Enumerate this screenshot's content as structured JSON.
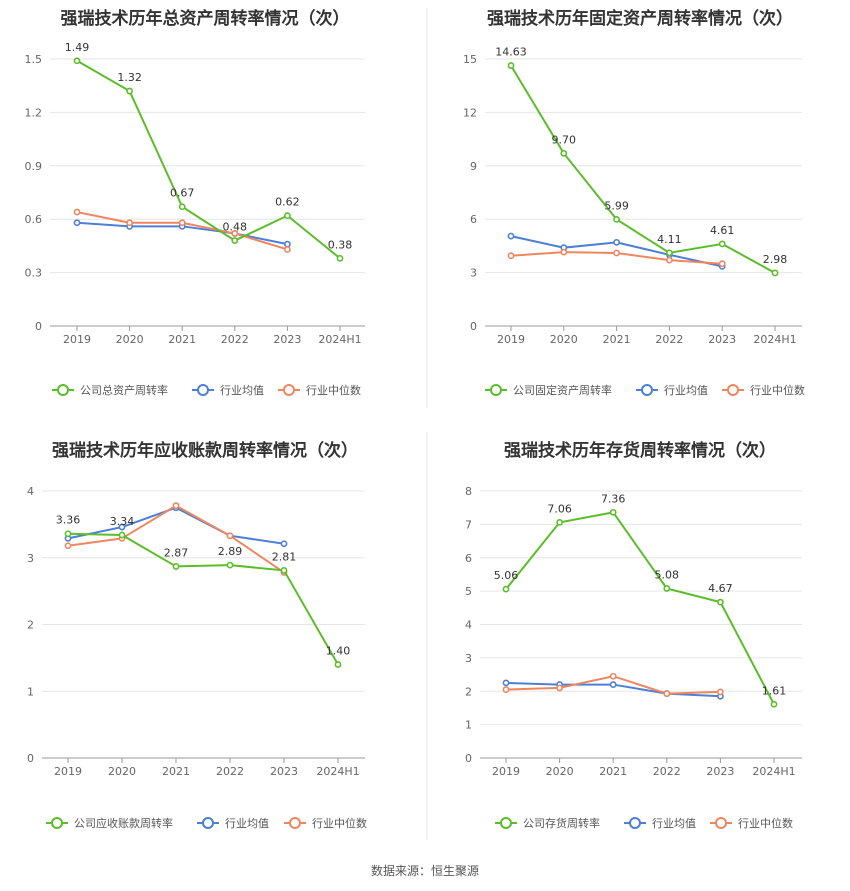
{
  "source": "数据来源：恒生聚源",
  "colors": {
    "company": "#5cbd2a",
    "avg": "#4c7fd6",
    "median": "#ee8660"
  },
  "chart_data": [
    {
      "type": "line",
      "title": "强瑞技术历年总资产周转率情况（次）",
      "categories": [
        "2019",
        "2020",
        "2021",
        "2022",
        "2023",
        "2024H1"
      ],
      "ylim": [
        0,
        1.5
      ],
      "yticks": [
        "0",
        "0.3",
        "0.6",
        "0.9",
        "1.2",
        "1.5"
      ],
      "series": [
        {
          "name": "公司总资产周转率",
          "values": [
            1.49,
            1.32,
            0.67,
            0.48,
            0.62,
            0.38
          ],
          "labels": [
            "1.49",
            "1.32",
            "0.67",
            "0.48",
            "0.62",
            "0.38"
          ]
        },
        {
          "name": "行业均值",
          "values": [
            0.58,
            0.56,
            0.56,
            0.52,
            0.46,
            null
          ]
        },
        {
          "name": "行业中位数",
          "values": [
            0.64,
            0.58,
            0.58,
            0.52,
            0.43,
            null
          ]
        }
      ]
    },
    {
      "type": "line",
      "title": "强瑞技术历年固定资产周转率情况（次）",
      "categories": [
        "2019",
        "2020",
        "2021",
        "2022",
        "2023",
        "2024H1"
      ],
      "ylim": [
        0,
        15
      ],
      "yticks": [
        "0",
        "3",
        "6",
        "9",
        "12",
        "15"
      ],
      "series": [
        {
          "name": "公司固定资产周转率",
          "values": [
            14.63,
            9.7,
            5.99,
            4.11,
            4.61,
            2.98
          ],
          "labels": [
            "14.63",
            "9.70",
            "5.99",
            "4.11",
            "4.61",
            "2.98"
          ]
        },
        {
          "name": "行业均值",
          "values": [
            5.05,
            4.4,
            4.7,
            4.0,
            3.35,
            null
          ]
        },
        {
          "name": "行业中位数",
          "values": [
            3.95,
            4.15,
            4.1,
            3.7,
            3.5,
            null
          ]
        }
      ]
    },
    {
      "type": "line",
      "title": "强瑞技术历年应收账款周转率情况（次）",
      "categories": [
        "2019",
        "2020",
        "2021",
        "2022",
        "2023",
        "2024H1"
      ],
      "ylim": [
        0,
        4
      ],
      "yticks": [
        "0",
        "1",
        "2",
        "3",
        "4"
      ],
      "series": [
        {
          "name": "公司应收账款周转率",
          "values": [
            3.36,
            3.34,
            2.87,
            2.89,
            2.81,
            1.4
          ],
          "labels": [
            "3.36",
            "3.34",
            "2.87",
            "2.89",
            "2.81",
            "1.40"
          ]
        },
        {
          "name": "行业均值",
          "values": [
            3.29,
            3.46,
            3.75,
            3.33,
            3.21,
            null
          ]
        },
        {
          "name": "行业中位数",
          "values": [
            3.18,
            3.29,
            3.78,
            3.33,
            2.78,
            null
          ]
        }
      ]
    },
    {
      "type": "line",
      "title": "强瑞技术历年存货周转率情况（次）",
      "categories": [
        "2019",
        "2020",
        "2021",
        "2022",
        "2023",
        "2024H1"
      ],
      "ylim": [
        0,
        8
      ],
      "yticks": [
        "0",
        "1",
        "2",
        "3",
        "4",
        "5",
        "6",
        "7",
        "8"
      ],
      "series": [
        {
          "name": "公司存货周转率",
          "values": [
            5.06,
            7.06,
            7.36,
            5.08,
            4.67,
            1.61
          ],
          "labels": [
            "5.06",
            "7.06",
            "7.36",
            "5.08",
            "4.67",
            "1.61"
          ]
        },
        {
          "name": "行业均值",
          "values": [
            2.25,
            2.2,
            2.2,
            1.93,
            1.85,
            null
          ]
        },
        {
          "name": "行业中位数",
          "values": [
            2.05,
            2.1,
            2.45,
            1.93,
            1.98,
            null
          ]
        }
      ]
    }
  ]
}
